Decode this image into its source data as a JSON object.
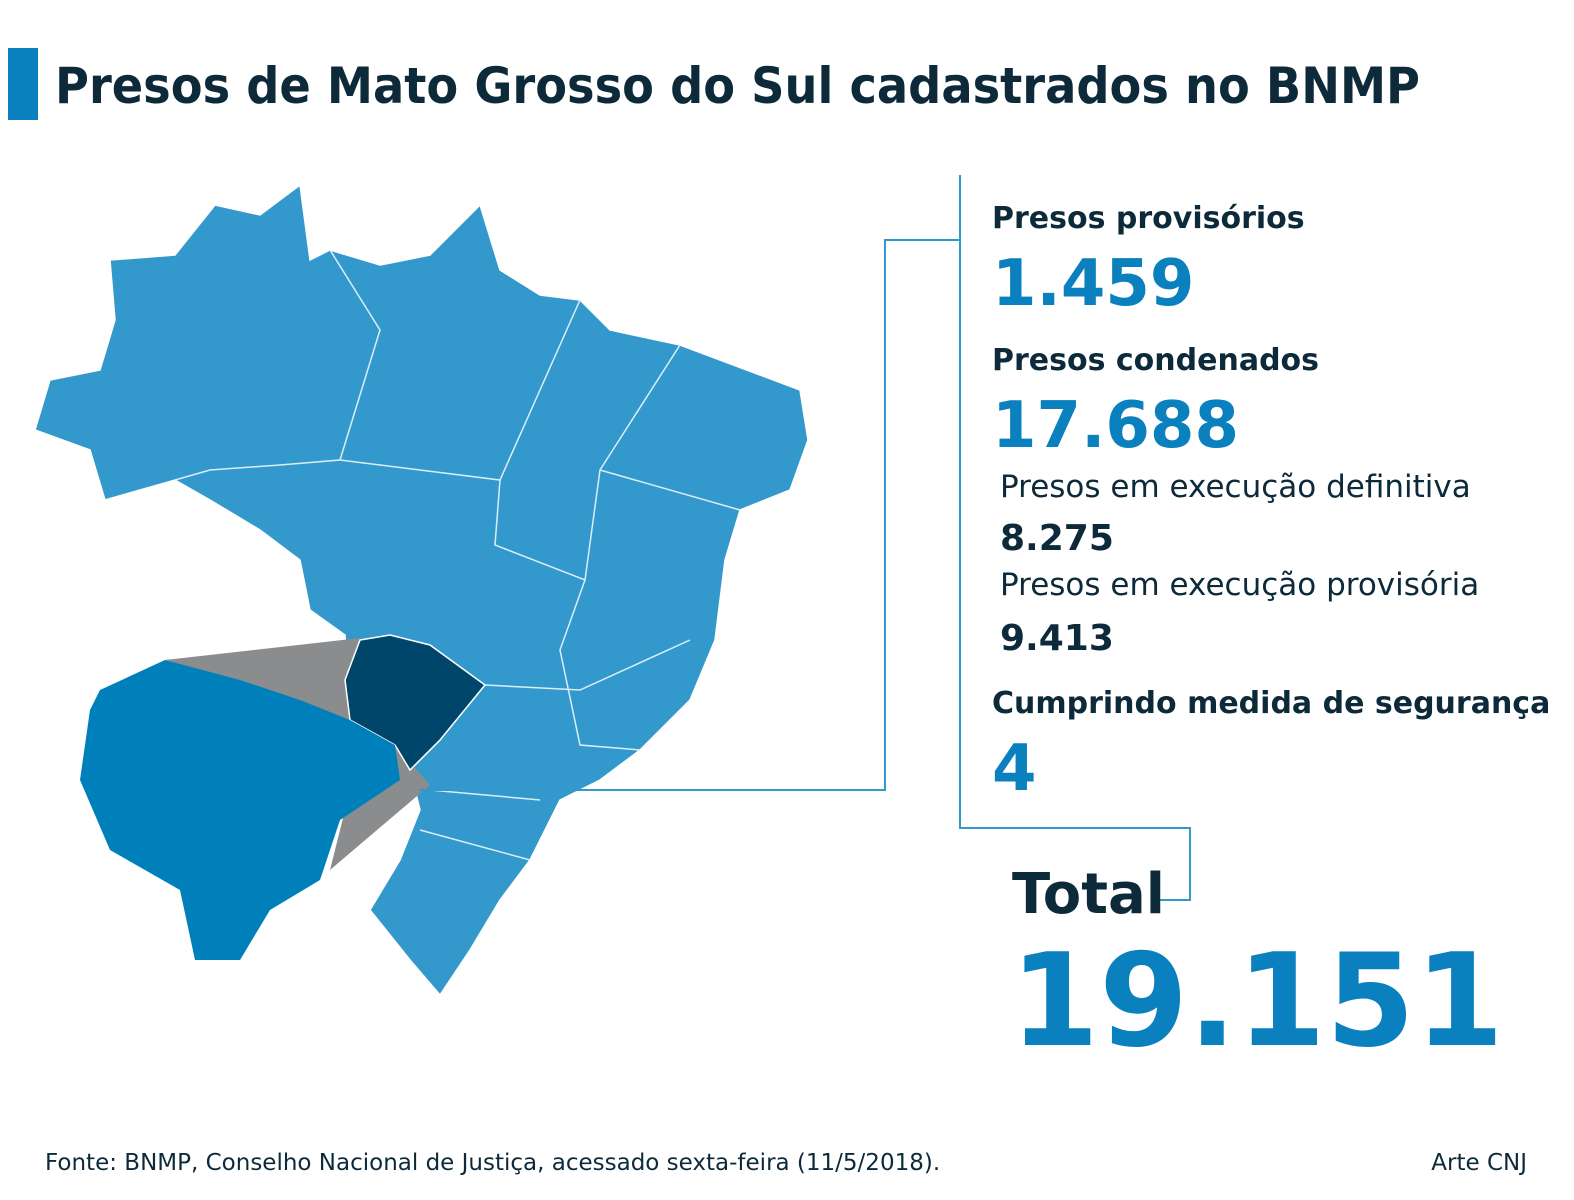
{
  "title": "Presos de Mato Grosso do Sul cadastrados no BNMP",
  "stats": [
    {
      "label": "Presos provisórios",
      "value": "1.459"
    },
    {
      "label": "Presos condenados",
      "value": "17.688"
    },
    {
      "label": "Presos em execução definitiva",
      "value": "8.275"
    },
    {
      "label": "Presos em execução provisória",
      "value": "9.413"
    },
    {
      "label": "Cumprindo medida de segurança",
      "value": "4"
    }
  ],
  "total": {
    "label": "Total",
    "value": "19.151"
  },
  "source": "Fonte: BNMP, Conselho Nacional de Justiça, acessado sexta-feira (11/5/2018).",
  "credit": "Arte CNJ"
}
